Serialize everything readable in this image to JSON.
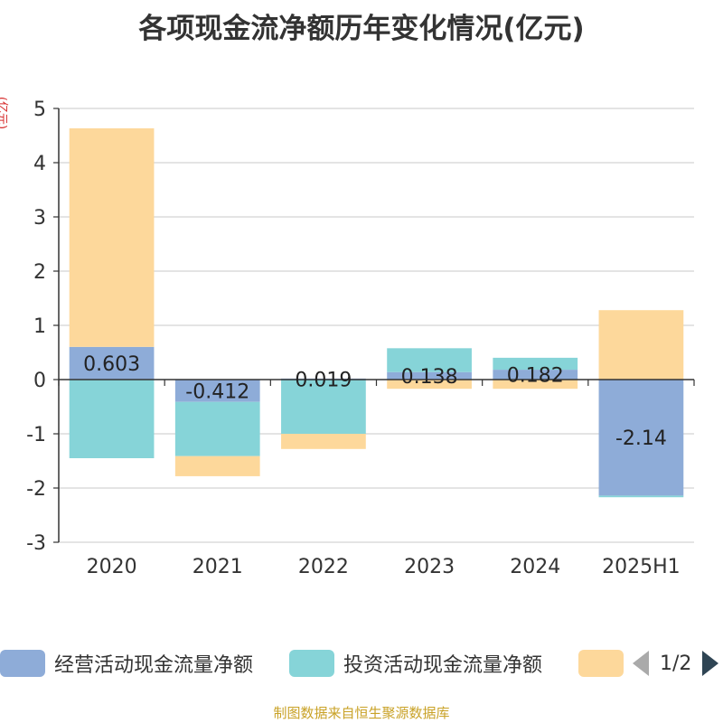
{
  "title": "各项现金流净额历年变化情况(亿元)",
  "unit_label": "(亿元)",
  "source": "制图数据来自恒生聚源数据库",
  "pager": {
    "text": "1/2"
  },
  "chart_data": {
    "type": "bar",
    "stacked": true,
    "categories": [
      "2020",
      "2021",
      "2022",
      "2023",
      "2024",
      "2025H1"
    ],
    "ylim": [
      -3,
      5
    ],
    "yticks": [
      -3,
      -2,
      -1,
      0,
      1,
      2,
      3,
      4,
      5
    ],
    "grid": true,
    "legend_position": "bottom",
    "series": [
      {
        "name": "经营活动现金流量净额",
        "color": "#8eacd8",
        "values": [
          0.603,
          -0.412,
          0.019,
          0.138,
          0.182,
          -2.14
        ],
        "labels": [
          "0.603",
          "-0.412",
          "0.019",
          "0.138",
          "0.182",
          "-2.14"
        ]
      },
      {
        "name": "投资活动现金流量净额",
        "color": "#86d4d8",
        "values": [
          -1.45,
          -1.0,
          -1.0,
          0.44,
          0.22,
          -0.03
        ]
      },
      {
        "name": "",
        "color": "#fdd89b",
        "values": [
          4.03,
          -0.37,
          -0.28,
          -0.17,
          -0.17,
          1.28
        ]
      }
    ]
  }
}
